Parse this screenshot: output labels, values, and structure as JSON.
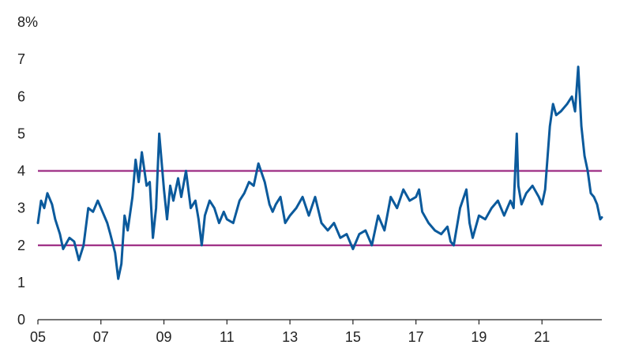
{
  "chart_data": {
    "type": "line",
    "title": "",
    "xlabel": "",
    "ylabel": "",
    "y_unit_label": "8%",
    "xlim": [
      2005.0,
      2022.9
    ],
    "ylim": [
      0,
      8
    ],
    "x_tick_values": [
      2005,
      2007,
      2009,
      2011,
      2013,
      2015,
      2017,
      2019,
      2021
    ],
    "x_tick_labels": [
      "05",
      "07",
      "09",
      "11",
      "13",
      "15",
      "17",
      "19",
      "21"
    ],
    "y_tick_values": [
      0,
      1,
      2,
      3,
      4,
      5,
      6,
      7,
      8
    ],
    "y_tick_labels": [
      "0",
      "1",
      "2",
      "3",
      "4",
      "5",
      "6",
      "7",
      "8%"
    ],
    "grid": false,
    "legend": "none",
    "series": [
      {
        "color": "#0b5a9c",
        "x": [
          2005.0,
          2005.1,
          2005.2,
          2005.3,
          2005.45,
          2005.55,
          2005.7,
          2005.8,
          2006.0,
          2006.15,
          2006.3,
          2006.45,
          2006.6,
          2006.75,
          2006.9,
          2007.0,
          2007.2,
          2007.3,
          2007.45,
          2007.55,
          2007.65,
          2007.75,
          2007.85,
          2008.0,
          2008.1,
          2008.2,
          2008.3,
          2008.45,
          2008.55,
          2008.65,
          2008.75,
          2008.85,
          2009.0,
          2009.1,
          2009.2,
          2009.3,
          2009.45,
          2009.55,
          2009.7,
          2009.85,
          2010.0,
          2010.1,
          2010.2,
          2010.3,
          2010.45,
          2010.6,
          2010.75,
          2010.9,
          2011.0,
          2011.2,
          2011.4,
          2011.55,
          2011.7,
          2011.85,
          2012.0,
          2012.2,
          2012.35,
          2012.45,
          2012.55,
          2012.7,
          2012.85,
          2013.0,
          2013.2,
          2013.4,
          2013.6,
          2013.8,
          2014.0,
          2014.2,
          2014.4,
          2014.6,
          2014.8,
          2015.0,
          2015.2,
          2015.4,
          2015.6,
          2015.8,
          2016.0,
          2016.2,
          2016.4,
          2016.6,
          2016.8,
          2017.0,
          2017.1,
          2017.2,
          2017.4,
          2017.6,
          2017.8,
          2018.0,
          2018.1,
          2018.2,
          2018.4,
          2018.6,
          2018.7,
          2018.8,
          2019.0,
          2019.2,
          2019.4,
          2019.6,
          2019.8,
          2020.0,
          2020.1,
          2020.2,
          2020.25,
          2020.35,
          2020.5,
          2020.7,
          2020.9,
          2021.0,
          2021.1,
          2021.25,
          2021.35,
          2021.45,
          2021.6,
          2021.8,
          2021.95,
          2022.05,
          2022.15,
          2022.25,
          2022.35,
          2022.45,
          2022.55,
          2022.65,
          2022.75,
          2022.85,
          2022.9
        ],
        "y": [
          2.6,
          3.2,
          3.0,
          3.4,
          3.1,
          2.7,
          2.3,
          1.9,
          2.2,
          2.1,
          1.6,
          2.0,
          3.0,
          2.9,
          3.2,
          3.0,
          2.6,
          2.3,
          1.8,
          1.1,
          1.5,
          2.8,
          2.4,
          3.3,
          4.3,
          3.7,
          4.5,
          3.6,
          3.7,
          2.2,
          3.0,
          5.0,
          3.5,
          2.7,
          3.6,
          3.2,
          3.8,
          3.3,
          4.0,
          3.0,
          3.2,
          2.7,
          2.0,
          2.8,
          3.2,
          3.0,
          2.6,
          2.9,
          2.7,
          2.6,
          3.2,
          3.4,
          3.7,
          3.6,
          4.2,
          3.7,
          3.1,
          2.9,
          3.1,
          3.3,
          2.6,
          2.8,
          3.0,
          3.3,
          2.8,
          3.3,
          2.6,
          2.4,
          2.6,
          2.2,
          2.3,
          1.9,
          2.3,
          2.4,
          2.0,
          2.8,
          2.4,
          3.3,
          3.0,
          3.5,
          3.2,
          3.3,
          3.5,
          2.9,
          2.6,
          2.4,
          2.3,
          2.5,
          2.1,
          2.0,
          3.0,
          3.5,
          2.6,
          2.2,
          2.8,
          2.7,
          3.0,
          3.2,
          2.8,
          3.2,
          3.0,
          5.0,
          3.6,
          3.1,
          3.4,
          3.6,
          3.3,
          3.1,
          3.5,
          5.2,
          5.8,
          5.5,
          5.6,
          5.8,
          6.0,
          5.6,
          6.8,
          5.2,
          4.4,
          4.0,
          3.4,
          3.3,
          3.1,
          2.7,
          2.75
        ]
      }
    ],
    "reference_lines": [
      {
        "y": 4,
        "color": "#9c2a82"
      },
      {
        "y": 2,
        "color": "#9c2a82"
      }
    ]
  }
}
